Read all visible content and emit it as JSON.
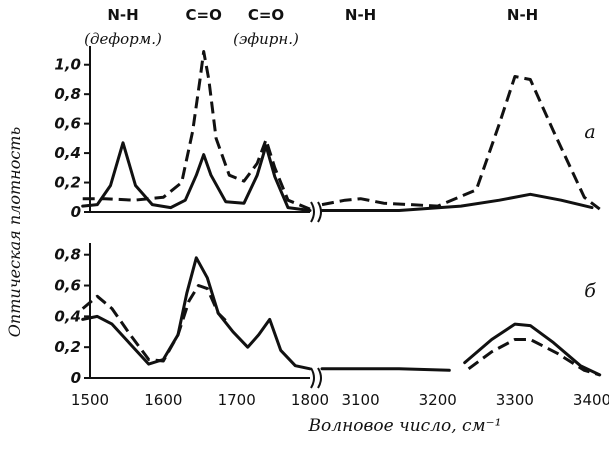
{
  "chart_data": {
    "type": "line",
    "xlabel": "Волновое число, см⁻¹",
    "ylabel": "Оптическая плотность",
    "xticks": [
      "1500",
      "1600",
      "1700",
      "1800",
      "3100",
      "3200",
      "3300",
      "3400"
    ],
    "x_break": [
      1800,
      3050
    ],
    "band_labels": [
      {
        "name": "N-H",
        "sub": "(деформ.)",
        "x": 1545
      },
      {
        "name": "C=O",
        "sub": "",
        "x": 1655
      },
      {
        "name": "C=O",
        "sub": "(эфирн.)",
        "x": 1740
      },
      {
        "name": "N-H",
        "sub": "",
        "x": 3100
      },
      {
        "name": "N-H",
        "sub": "",
        "x": 3310
      }
    ],
    "panels": [
      {
        "label": "а",
        "ylim": [
          0,
          1.1
        ],
        "yticks": [
          "0",
          "0,2",
          "0,4",
          "0,6",
          "0,8",
          "1,0"
        ],
        "series": [
          {
            "style": "solid",
            "segments": [
              [
                [
                  1490,
                  0.04
                ],
                [
                  1510,
                  0.05
                ],
                [
                  1528,
                  0.18
                ],
                [
                  1545,
                  0.47
                ],
                [
                  1562,
                  0.18
                ],
                [
                  1585,
                  0.05
                ],
                [
                  1610,
                  0.03
                ],
                [
                  1630,
                  0.08
                ],
                [
                  1645,
                  0.25
                ],
                [
                  1655,
                  0.39
                ],
                [
                  1665,
                  0.25
                ],
                [
                  1685,
                  0.07
                ],
                [
                  1710,
                  0.06
                ],
                [
                  1728,
                  0.25
                ],
                [
                  1740,
                  0.45
                ],
                [
                  1752,
                  0.24
                ],
                [
                  1770,
                  0.03
                ],
                [
                  1800,
                  0.01
                ]
              ],
              [
                [
                  3050,
                  0.01
                ],
                [
                  3150,
                  0.01
                ],
                [
                  3230,
                  0.04
                ],
                [
                  3280,
                  0.08
                ],
                [
                  3320,
                  0.12
                ],
                [
                  3360,
                  0.08
                ],
                [
                  3400,
                  0.03
                ]
              ]
            ]
          },
          {
            "style": "dashed",
            "segments": [
              [
                [
                  1490,
                  0.09
                ],
                [
                  1520,
                  0.09
                ],
                [
                  1560,
                  0.08
                ],
                [
                  1600,
                  0.1
                ],
                [
                  1625,
                  0.2
                ],
                [
                  1640,
                  0.55
                ],
                [
                  1650,
                  0.9
                ],
                [
                  1655,
                  1.09
                ],
                [
                  1662,
                  0.9
                ],
                [
                  1672,
                  0.5
                ],
                [
                  1690,
                  0.25
                ],
                [
                  1710,
                  0.21
                ],
                [
                  1728,
                  0.33
                ],
                [
                  1740,
                  0.49
                ],
                [
                  1752,
                  0.3
                ],
                [
                  1770,
                  0.08
                ],
                [
                  1800,
                  0.02
                ]
              ],
              [
                [
                  3050,
                  0.05
                ],
                [
                  3080,
                  0.08
                ],
                [
                  3100,
                  0.09
                ],
                [
                  3130,
                  0.06
                ],
                [
                  3200,
                  0.04
                ],
                [
                  3250,
                  0.15
                ],
                [
                  3280,
                  0.6
                ],
                [
                  3300,
                  0.92
                ],
                [
                  3320,
                  0.9
                ],
                [
                  3350,
                  0.55
                ],
                [
                  3390,
                  0.1
                ],
                [
                  3410,
                  0.02
                ]
              ]
            ]
          }
        ]
      },
      {
        "label": "б",
        "ylim": [
          0,
          0.85
        ],
        "yticks": [
          "0",
          "0,2",
          "0,4",
          "0,6",
          "0,8"
        ],
        "series": [
          {
            "style": "solid",
            "segments": [
              [
                [
                  1490,
                  0.38
                ],
                [
                  1510,
                  0.4
                ],
                [
                  1530,
                  0.35
                ],
                [
                  1555,
                  0.22
                ],
                [
                  1580,
                  0.09
                ],
                [
                  1600,
                  0.12
                ],
                [
                  1620,
                  0.28
                ],
                [
                  1632,
                  0.55
                ],
                [
                  1645,
                  0.78
                ],
                [
                  1660,
                  0.65
                ],
                [
                  1675,
                  0.42
                ],
                [
                  1695,
                  0.3
                ],
                [
                  1715,
                  0.2
                ],
                [
                  1730,
                  0.28
                ],
                [
                  1745,
                  0.38
                ],
                [
                  1760,
                  0.18
                ],
                [
                  1780,
                  0.08
                ],
                [
                  1800,
                  0.06
                ]
              ],
              [
                [
                  3050,
                  0.06
                ],
                [
                  3150,
                  0.06
                ],
                [
                  3215,
                  0.05
                ]
              ],
              [
                [
                  3235,
                  0.1
                ],
                [
                  3270,
                  0.25
                ],
                [
                  3300,
                  0.35
                ],
                [
                  3320,
                  0.34
                ],
                [
                  3350,
                  0.23
                ],
                [
                  3385,
                  0.08
                ],
                [
                  3410,
                  0.02
                ]
              ]
            ]
          },
          {
            "style": "dashed",
            "segments": [
              [
                [
                  1490,
                  0.45
                ],
                [
                  1510,
                  0.53
                ],
                [
                  1530,
                  0.45
                ],
                [
                  1555,
                  0.28
                ],
                [
                  1580,
                  0.12
                ],
                [
                  1600,
                  0.11
                ],
                [
                  1620,
                  0.28
                ],
                [
                  1635,
                  0.5
                ],
                [
                  1648,
                  0.6
                ],
                [
                  1660,
                  0.58
                ],
                [
                  1675,
                  0.42
                ],
                [
                  1690,
                  0.35
                ]
              ],
              [
                [
                  3240,
                  0.06
                ],
                [
                  3270,
                  0.17
                ],
                [
                  3300,
                  0.25
                ],
                [
                  3320,
                  0.25
                ],
                [
                  3355,
                  0.16
                ],
                [
                  3390,
                  0.05
                ],
                [
                  3410,
                  0.02
                ]
              ]
            ]
          }
        ]
      }
    ]
  }
}
